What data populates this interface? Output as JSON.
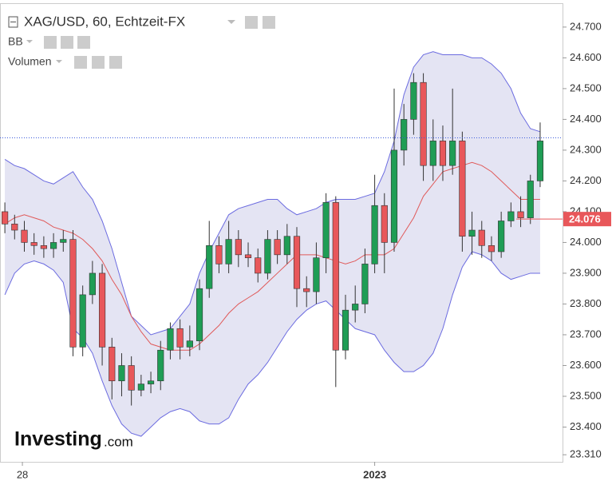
{
  "chart_data": {
    "type": "candlestick",
    "title": "XAG/USD, 60, Echtzeit-FX",
    "indicators": [
      "BB",
      "Volumen"
    ],
    "logo": "Investing",
    "logo_suffix": ".com",
    "ohlc": {
      "open": [
        24.1,
        24.06,
        24.04,
        24.0,
        23.99,
        23.98,
        24.0,
        24.01,
        23.66,
        23.83,
        23.9,
        23.66,
        23.55,
        23.6,
        23.52,
        23.54,
        23.55,
        23.65,
        23.72,
        23.66,
        23.68,
        23.85,
        23.99,
        23.93,
        24.01,
        23.96,
        23.95,
        23.9,
        24.01,
        23.96,
        24.02,
        23.85,
        23.84,
        23.95,
        24.13,
        23.65,
        23.78,
        23.8,
        23.93,
        24.12,
        24.0,
        24.3,
        24.4,
        24.52,
        24.25,
        24.33,
        24.25,
        24.33,
        24.02,
        24.04,
        23.99,
        23.97,
        24.07,
        24.1,
        24.08,
        24.2
      ],
      "high": [
        24.13,
        24.09,
        24.07,
        24.03,
        24.02,
        24.03,
        24.04,
        24.04,
        23.86,
        23.94,
        23.93,
        23.69,
        23.64,
        23.63,
        23.57,
        23.58,
        23.68,
        23.74,
        23.75,
        23.73,
        23.88,
        24.07,
        24.02,
        24.07,
        24.04,
        24.0,
        23.98,
        24.04,
        24.04,
        24.06,
        24.05,
        23.89,
        24.0,
        24.16,
        24.15,
        23.83,
        23.86,
        23.98,
        24.22,
        24.16,
        24.5,
        24.45,
        24.55,
        24.55,
        24.4,
        24.38,
        24.5,
        24.36,
        24.1,
        24.07,
        24.02,
        24.1,
        24.13,
        24.15,
        24.22,
        24.39
      ],
      "low": [
        24.03,
        24.01,
        23.97,
        23.96,
        23.95,
        23.95,
        23.97,
        23.63,
        23.63,
        23.8,
        23.6,
        23.49,
        23.5,
        23.47,
        23.5,
        23.51,
        23.52,
        23.62,
        23.62,
        23.63,
        23.65,
        23.82,
        23.9,
        23.9,
        23.92,
        23.92,
        23.87,
        23.88,
        23.93,
        23.93,
        23.79,
        23.79,
        23.8,
        23.9,
        23.53,
        23.62,
        23.74,
        23.77,
        23.9,
        23.9,
        23.97,
        24.25,
        24.35,
        24.2,
        24.2,
        24.2,
        24.22,
        23.97,
        23.96,
        23.95,
        23.94,
        23.95,
        24.05,
        24.05,
        24.06,
        24.18
      ],
      "close": [
        24.06,
        24.04,
        24.0,
        23.99,
        23.98,
        24.0,
        24.01,
        23.66,
        23.83,
        23.9,
        23.66,
        23.55,
        23.6,
        23.52,
        23.54,
        23.55,
        23.65,
        23.72,
        23.66,
        23.68,
        23.85,
        23.99,
        23.93,
        24.01,
        23.96,
        23.95,
        23.9,
        24.01,
        23.96,
        24.02,
        23.85,
        23.84,
        23.95,
        24.13,
        23.65,
        23.78,
        23.8,
        23.93,
        24.12,
        24.0,
        24.3,
        24.4,
        24.52,
        24.25,
        24.33,
        24.25,
        24.33,
        24.02,
        24.04,
        23.99,
        23.97,
        24.07,
        24.1,
        24.08,
        24.2,
        24.33
      ]
    },
    "bb": {
      "upper": [
        24.27,
        24.25,
        24.24,
        24.22,
        24.2,
        24.19,
        24.21,
        24.23,
        24.18,
        24.14,
        24.07,
        23.98,
        23.87,
        23.76,
        23.73,
        23.7,
        23.71,
        23.72,
        23.76,
        23.8,
        23.9,
        23.97,
        24.03,
        24.09,
        24.11,
        24.12,
        24.13,
        24.14,
        24.14,
        24.11,
        24.09,
        24.1,
        24.11,
        24.13,
        24.14,
        24.14,
        24.14,
        24.15,
        24.16,
        24.23,
        24.33,
        24.48,
        24.57,
        24.61,
        24.62,
        24.61,
        24.61,
        24.61,
        24.6,
        24.6,
        24.58,
        24.55,
        24.5,
        24.42,
        24.37,
        24.36
      ],
      "middle": [
        24.06,
        24.08,
        24.09,
        24.08,
        24.07,
        24.05,
        24.04,
        24.03,
        24.01,
        23.98,
        23.94,
        23.88,
        23.83,
        23.76,
        23.71,
        23.67,
        23.66,
        23.65,
        23.65,
        23.65,
        23.67,
        23.7,
        23.73,
        23.77,
        23.8,
        23.82,
        23.84,
        23.87,
        23.9,
        23.93,
        23.96,
        23.96,
        23.96,
        23.95,
        23.94,
        23.93,
        23.94,
        23.96,
        23.96,
        23.96,
        23.98,
        24.03,
        24.08,
        24.15,
        24.19,
        24.23,
        24.24,
        24.25,
        24.26,
        24.25,
        24.23,
        24.2,
        24.17,
        24.14,
        24.14,
        24.14
      ],
      "lower": [
        23.83,
        23.9,
        23.93,
        23.94,
        23.93,
        23.91,
        23.87,
        23.72,
        23.69,
        23.64,
        23.55,
        23.47,
        23.41,
        23.38,
        23.37,
        23.4,
        23.43,
        23.45,
        23.46,
        23.45,
        23.42,
        23.41,
        23.41,
        23.43,
        23.49,
        23.54,
        23.57,
        23.61,
        23.66,
        23.71,
        23.75,
        23.78,
        23.8,
        23.81,
        23.78,
        23.75,
        23.72,
        23.71,
        23.7,
        23.65,
        23.61,
        23.58,
        23.58,
        23.6,
        23.64,
        23.72,
        23.83,
        23.92,
        23.97,
        23.96,
        23.94,
        23.9,
        23.88,
        23.89,
        23.9,
        23.9
      ]
    },
    "up_color": "#1f9d55",
    "down_color": "#e8575a",
    "band_color": "#6b6be0",
    "band_fill": "#e4e4f3",
    "middle_color": "#e05a5a",
    "last_price": {
      "value": 24.076,
      "label": "24.076"
    },
    "price_line": 24.34,
    "xlim": [
      -0.5,
      57.3
    ],
    "xticks": [
      {
        "value": 1.8,
        "label": "28"
      },
      {
        "value": 38.0,
        "label": "2023"
      }
    ],
    "ylim": [
      23.287,
      24.775
    ],
    "yticks": [
      {
        "value": 24.7,
        "label": "24.700"
      },
      {
        "value": 24.6,
        "label": "24.600"
      },
      {
        "value": 24.5,
        "label": "24.500"
      },
      {
        "value": 24.4,
        "label": "24.400"
      },
      {
        "value": 24.3,
        "label": "24.300"
      },
      {
        "value": 24.2,
        "label": "24.200"
      },
      {
        "value": 24.1,
        "label": "24.100"
      },
      {
        "value": 24.0,
        "label": "24.000"
      },
      {
        "value": 23.9,
        "label": "23.900"
      },
      {
        "value": 23.8,
        "label": "23.800"
      },
      {
        "value": 23.7,
        "label": "23.700"
      },
      {
        "value": 23.6,
        "label": "23.600"
      },
      {
        "value": 23.5,
        "label": "23.500"
      },
      {
        "value": 23.4,
        "label": "23.400"
      },
      {
        "value": 23.31,
        "label": "23.310"
      }
    ]
  }
}
